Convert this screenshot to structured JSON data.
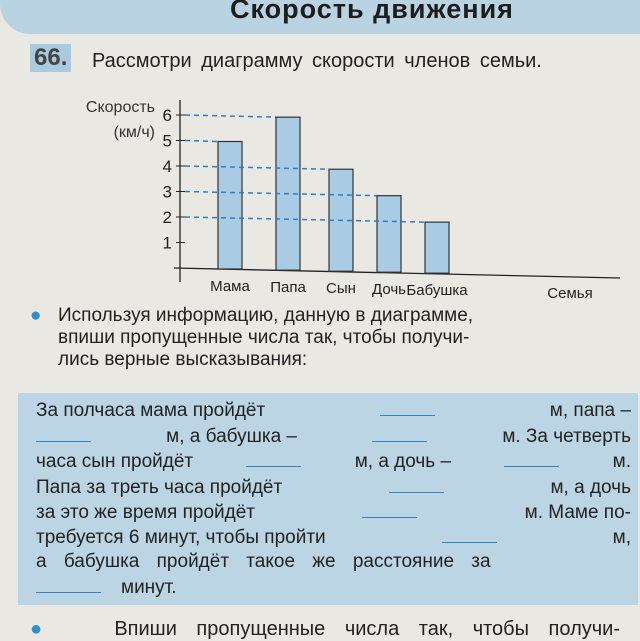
{
  "header": {
    "title": "Скорость движения"
  },
  "task": {
    "number": "66.",
    "intro": "Рассмотри диаграмму скорости членов семьи."
  },
  "chart_data": {
    "type": "bar",
    "ylabel": "Скорость (км/ч)",
    "xlabel": "Семья",
    "categories": [
      "Мама",
      "Папа",
      "Сын",
      "Дочь",
      "Бабушка"
    ],
    "values": [
      5,
      6,
      4,
      3,
      2
    ],
    "yticks": [
      1,
      2,
      3,
      4,
      5,
      6
    ],
    "ylim": [
      0,
      6
    ],
    "bar_color": "#a9cbe3",
    "guide_color": "#2f7fc6"
  },
  "instruction": {
    "line1": "Используя информацию, данную в диаграмме,",
    "line2": "впиши пропущенные числа так, чтобы получи-",
    "line3": "лись верные высказывания:"
  },
  "box": {
    "l1": [
      "За полчаса мама пройдёт",
      "м, папа –"
    ],
    "l2": [
      "м, а бабушка –",
      "м. За четверть"
    ],
    "l3": [
      "часа сын пройдёт",
      "м, а дочь –",
      "м."
    ],
    "l4": [
      "Папа за треть часа пройдёт",
      "м, а дочь"
    ],
    "l5": [
      "за это же время пройдёт",
      "м. Маме по-"
    ],
    "l6": [
      "требуется 6 минут, чтобы пройти",
      "м,"
    ],
    "l7": [
      "а бабушка пройдёт такое же расстояние за"
    ],
    "l8": [
      "минут."
    ]
  },
  "next": {
    "text": "Впиши пропущенные числа так, чтобы получи-"
  }
}
